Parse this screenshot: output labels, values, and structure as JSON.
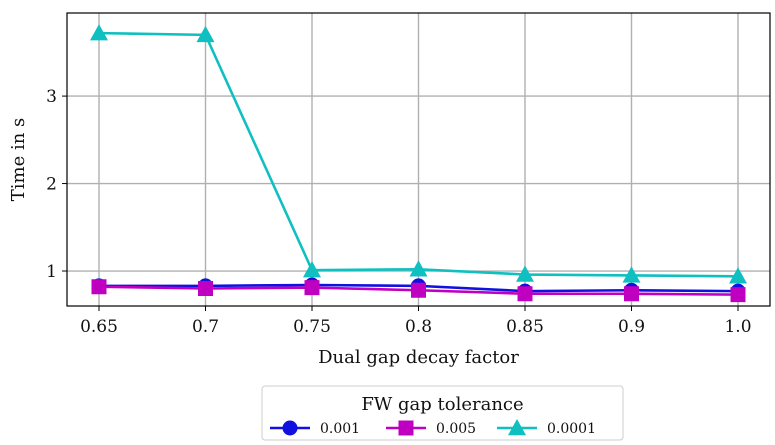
{
  "chart_data": {
    "type": "line",
    "x": [
      0.65,
      0.7,
      0.75,
      0.8,
      0.85,
      0.9,
      1.0
    ],
    "x_tick_labels": [
      "0.65",
      "0.7",
      "0.75",
      "0.8",
      "0.85",
      "0.9",
      "1.0"
    ],
    "y_ticks": [
      1,
      2,
      3
    ],
    "y_tick_labels": [
      "1",
      "2",
      "3"
    ],
    "ylim": [
      0.6,
      3.95
    ],
    "xlabel": "Dual gap decay factor",
    "ylabel": "Time in s",
    "grid": true,
    "legend": {
      "title": "FW gap tolerance",
      "placement": "bottom-center, below plot"
    },
    "series": [
      {
        "name": "0.001",
        "color": "#1010e0",
        "marker": "circle",
        "values": [
          0.83,
          0.83,
          0.84,
          0.83,
          0.77,
          0.78,
          0.77
        ]
      },
      {
        "name": "0.005",
        "color": "#c000c0",
        "marker": "square",
        "values": [
          0.82,
          0.8,
          0.81,
          0.78,
          0.74,
          0.74,
          0.73
        ]
      },
      {
        "name": "0.0001",
        "color": "#10c0c0",
        "marker": "triangle",
        "values": [
          3.72,
          3.7,
          1.01,
          1.02,
          0.96,
          0.95,
          0.94
        ]
      }
    ]
  }
}
